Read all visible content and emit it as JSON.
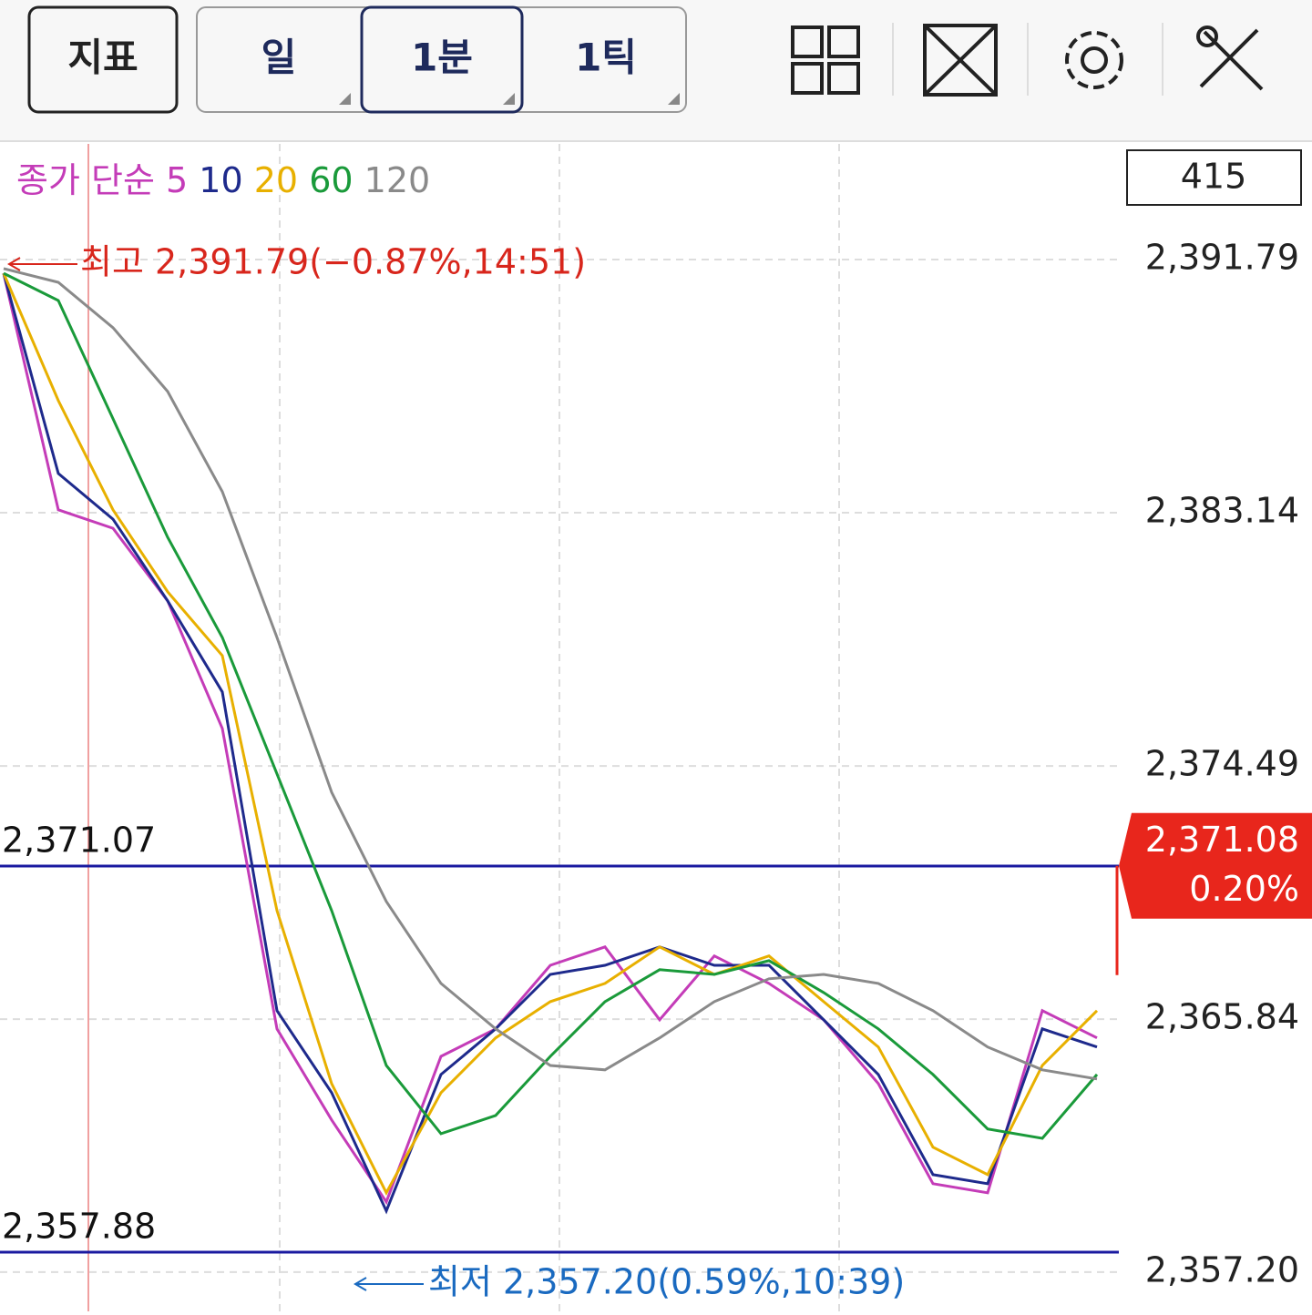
{
  "toolbar": {
    "buttons": [
      "지표",
      "일",
      "1분",
      "1틱"
    ]
  },
  "chart_data": {
    "type": "line",
    "count_label": 415,
    "legend_title": "종가 단순",
    "categories": [
      null,
      null,
      null,
      null,
      null,
      null,
      null,
      null,
      null,
      null,
      null,
      null,
      null,
      null,
      null,
      null,
      null,
      null,
      null,
      null,
      null
    ],
    "series": [
      {
        "name": "5",
        "color": "#c43cb8",
        "values": [
          2391.32,
          2383.24,
          2382.61,
          2380.13,
          2375.77,
          2365.51,
          2362.4,
          2359.6,
          2364.57,
          2365.51,
          2367.68,
          2368.31,
          2365.82,
          2368.0,
          2367.06,
          2365.82,
          2363.64,
          2360.22,
          2359.91,
          2366.13,
          2365.2
        ]
      },
      {
        "name": "10",
        "color": "#1e2a8c",
        "values": [
          2391.32,
          2384.48,
          2382.92,
          2380.13,
          2377.02,
          2366.13,
          2363.33,
          2359.29,
          2363.95,
          2365.51,
          2367.37,
          2367.68,
          2368.31,
          2367.68,
          2367.68,
          2365.82,
          2363.95,
          2360.53,
          2360.22,
          2365.51,
          2364.89
        ]
      },
      {
        "name": "20",
        "color": "#e8b000",
        "values": [
          2391.32,
          2386.97,
          2383.24,
          2380.44,
          2378.26,
          2369.55,
          2363.64,
          2359.91,
          2363.33,
          2365.2,
          2366.44,
          2367.06,
          2368.31,
          2367.37,
          2368.0,
          2366.44,
          2364.89,
          2361.47,
          2360.53,
          2364.26,
          2366.13
        ]
      },
      {
        "name": "60",
        "color": "#1a9a3a",
        "values": [
          2391.32,
          2390.39,
          2386.35,
          2382.3,
          2378.88,
          2374.22,
          2369.55,
          2364.26,
          2361.93,
          2362.55,
          2364.57,
          2366.44,
          2367.53,
          2367.37,
          2367.84,
          2366.75,
          2365.51,
          2363.95,
          2362.09,
          2361.77,
          2363.95
        ]
      },
      {
        "name": "120",
        "color": "#8a8a8a",
        "values": [
          2391.48,
          2391.01,
          2389.46,
          2387.28,
          2383.86,
          2378.88,
          2373.59,
          2369.86,
          2367.06,
          2365.51,
          2364.26,
          2364.11,
          2365.2,
          2366.44,
          2367.22,
          2367.37,
          2367.06,
          2366.13,
          2364.89,
          2364.11,
          2363.8
        ]
      }
    ],
    "ylim": [
      2355.86,
      2395.77
    ],
    "yticks": [
      {
        "value": 2391.79,
        "label": "2,391.79"
      },
      {
        "value": 2383.14,
        "label": "2,383.14"
      },
      {
        "value": 2374.49,
        "label": "2,374.49"
      },
      {
        "value": 2365.84,
        "label": "2,365.84"
      },
      {
        "value": 2357.2,
        "label": "2,357.20"
      }
    ],
    "grid": true,
    "hlines": [
      {
        "value": 2371.07,
        "label": "2,371.07",
        "color": "#1a1aa0"
      },
      {
        "value": 2357.88,
        "label": "2,357.88",
        "color": "#1a1aa0"
      }
    ],
    "high_label": "최고 2,391.79(−0.87%,14:51)",
    "low_label": "최저 2,357.20(0.59%,10:39)",
    "current": {
      "value": 2371.08,
      "label": "2,371.08",
      "change": "0.20%",
      "color": "#e8261c"
    }
  }
}
